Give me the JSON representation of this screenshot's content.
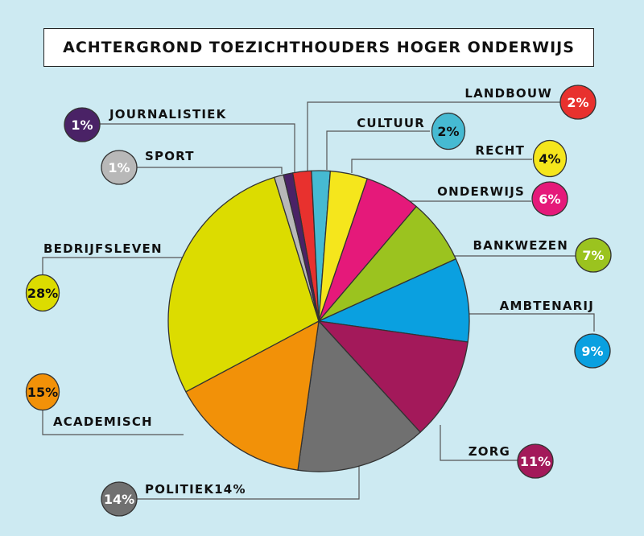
{
  "chart_data": {
    "type": "pie",
    "title": "ACHTERGROND TOEZICHTHOUDERS HOGER ONDERWIJS",
    "slices": [
      {
        "name": "LANDBOUW",
        "value": 2,
        "pct_label": "2%",
        "color": "#e8312e",
        "text_color": "#ffffff"
      },
      {
        "name": "CULTUUR",
        "value": 2,
        "pct_label": "2%",
        "color": "#46bad2",
        "text_color": "#111111"
      },
      {
        "name": "RECHT",
        "value": 4,
        "pct_label": "4%",
        "color": "#f5e61c",
        "text_color": "#111111"
      },
      {
        "name": "ONDERWIJS",
        "value": 6,
        "pct_label": "6%",
        "color": "#e5197a",
        "text_color": "#ffffff"
      },
      {
        "name": "BANKWEZEN",
        "value": 7,
        "pct_label": "7%",
        "color": "#9bc31f",
        "text_color": "#ffffff"
      },
      {
        "name": "AMBTENARIJ",
        "value": 9,
        "pct_label": "9%",
        "color": "#0aa0e0",
        "text_color": "#ffffff"
      },
      {
        "name": "ZORG",
        "value": 11,
        "pct_label": "11%",
        "color": "#a3195a",
        "text_color": "#ffffff"
      },
      {
        "name": "POLITIEK14%",
        "value": 14,
        "pct_label": "14%",
        "color": "#707070",
        "text_color": "#ffffff"
      },
      {
        "name": "ACADEMISCH",
        "value": 15,
        "pct_label": "15%",
        "color": "#f29108",
        "text_color": "#111111"
      },
      {
        "name": "BEDRIJFSLEVEN",
        "value": 28,
        "pct_label": "28%",
        "color": "#dcdc00",
        "text_color": "#111111"
      },
      {
        "name": "SPORT",
        "value": 1,
        "pct_label": "1%",
        "color": "#b8b8b8",
        "text_color": "#ffffff"
      },
      {
        "name": "JOURNALISTIEK",
        "value": 1,
        "pct_label": "1%",
        "color": "#4a2266",
        "text_color": "#ffffff"
      }
    ],
    "start_angle_deg": -10,
    "direction": "clockwise"
  },
  "style": {
    "background": "#cdeaf2",
    "outline": "#333333"
  }
}
